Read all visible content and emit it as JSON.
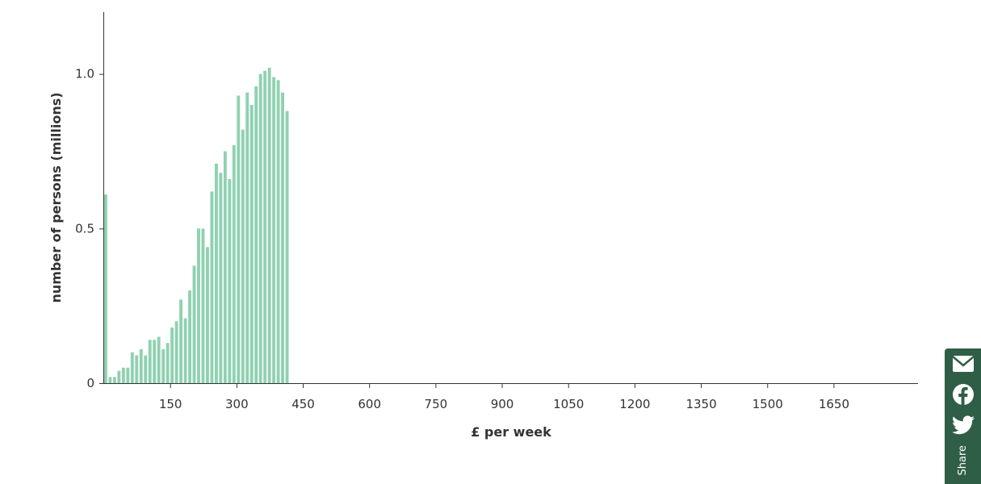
{
  "chart_data": {
    "type": "bar",
    "xlabel": "£ per week",
    "ylabel": "number of persons (millions)",
    "xlim": [
      0,
      1840
    ],
    "ylim": [
      0,
      1.2
    ],
    "bin_width": 10,
    "x_ticks": [
      150,
      300,
      450,
      600,
      750,
      900,
      1050,
      1200,
      1350,
      1500,
      1650
    ],
    "y_ticks": [
      {
        "value": 0,
        "label": "0"
      },
      {
        "value": 0.5,
        "label": "0.5"
      },
      {
        "value": 1.0,
        "label": "1.0"
      }
    ],
    "grid": false,
    "legend": "none",
    "colors": {
      "light": "#8fd1b0",
      "dark": "#3f7358",
      "axis": "#333333"
    },
    "series": [
      {
        "color": "light",
        "x": [
          0
        ],
        "values": [
          0.61
        ]
      },
      {
        "color": "light",
        "x": [
          10,
          20,
          30,
          40,
          50,
          60,
          70,
          80,
          90,
          100,
          110,
          120,
          130,
          140,
          150,
          160,
          170,
          180,
          190,
          200,
          210,
          220,
          230,
          240,
          250,
          260,
          270,
          280,
          290,
          300,
          310,
          320,
          330,
          340,
          350,
          360,
          370,
          380,
          390,
          400,
          410
        ],
        "values": [
          0.02,
          0.02,
          0.04,
          0.05,
          0.05,
          0.1,
          0.09,
          0.11,
          0.09,
          0.14,
          0.14,
          0.15,
          0.11,
          0.13,
          0.18,
          0.2,
          0.27,
          0.21,
          0.3,
          0.38,
          0.5,
          0.5,
          0.44,
          0.62,
          0.71,
          0.68,
          0.75,
          0.66,
          0.77,
          0.93,
          0.82,
          0.94,
          0.9,
          0.96,
          1.0,
          1.01,
          1.02,
          0.99,
          0.98,
          0.94,
          0.88
        ]
      }
    ]
  },
  "share": {
    "label": "Share"
  }
}
